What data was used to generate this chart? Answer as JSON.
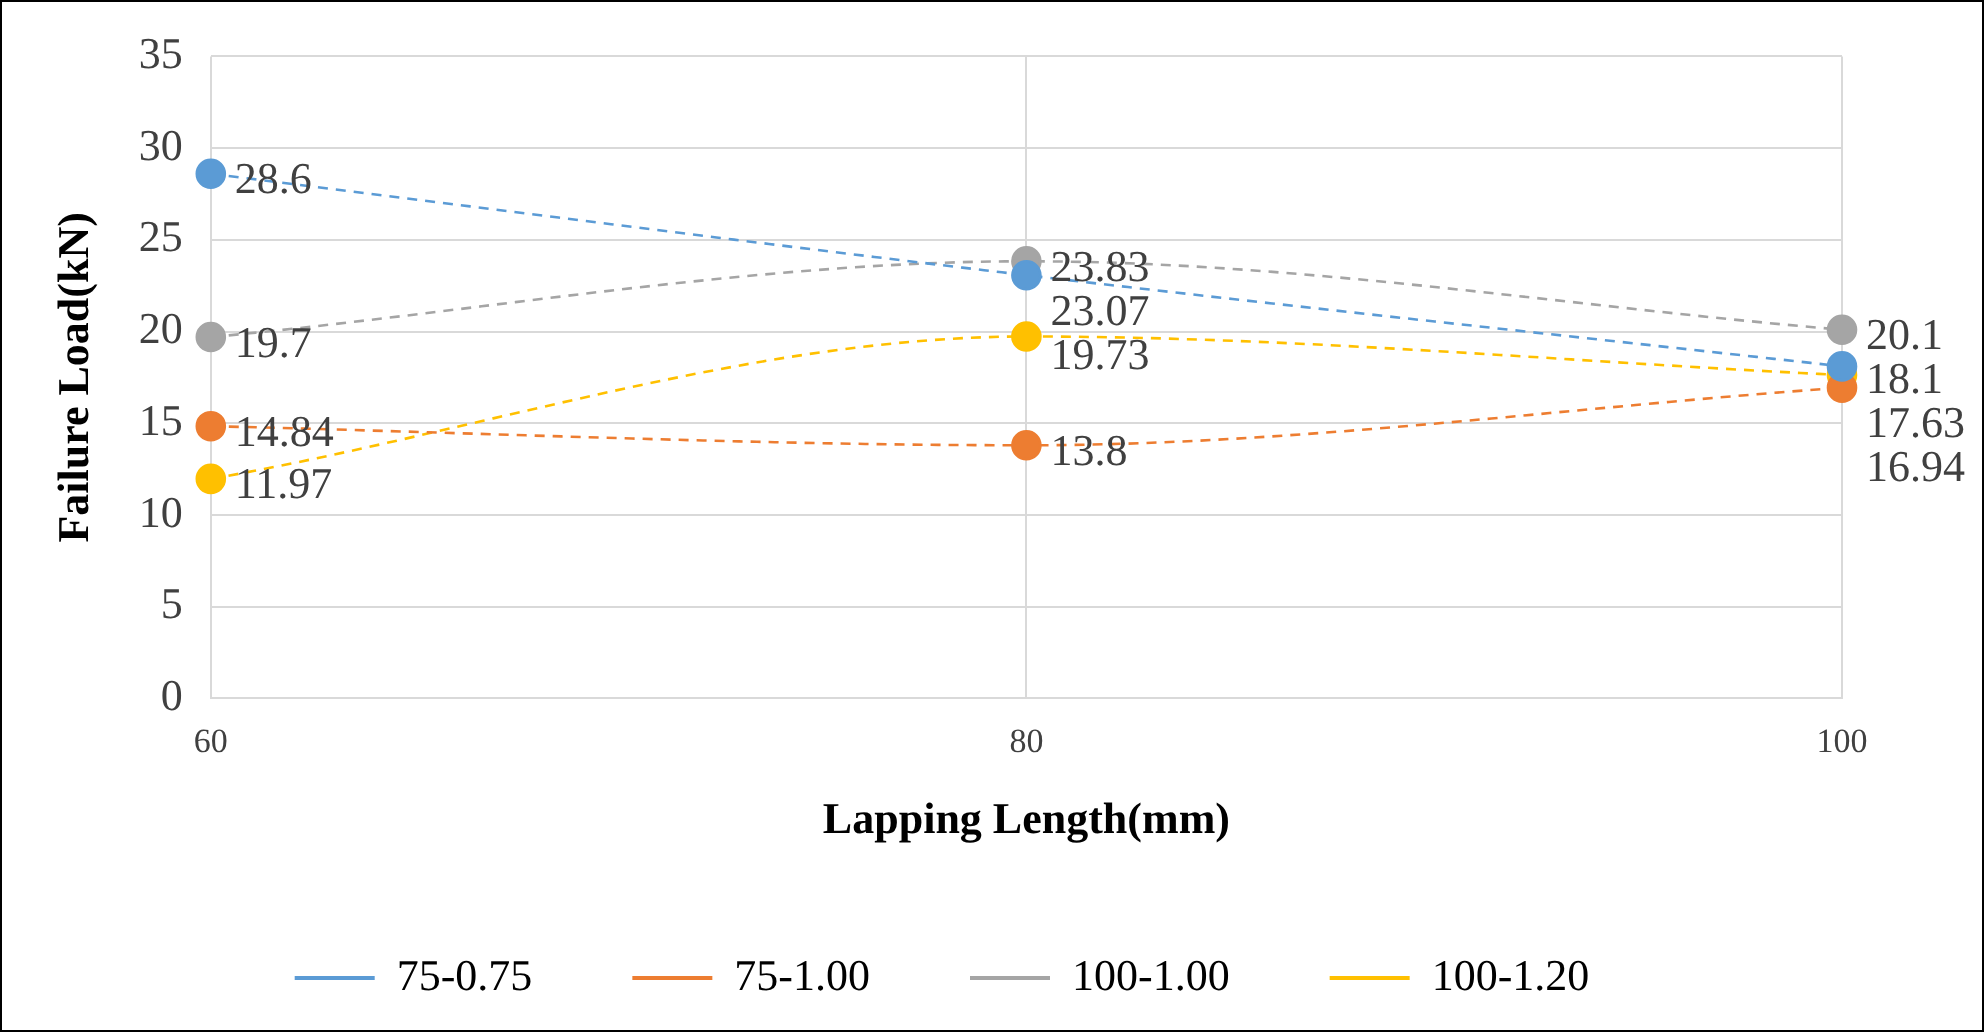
{
  "chart_data": {
    "type": "line",
    "xlabel": "Lapping Length(mm)",
    "ylabel": "Failure Load(kN)",
    "categories": [
      "60",
      "80",
      "100"
    ],
    "series": [
      {
        "name": "75-0.75",
        "color": "#5b9bd5",
        "values": [
          28.6,
          23.07,
          18.1
        ]
      },
      {
        "name": "75-1.00",
        "color": "#ed7d31",
        "values": [
          14.84,
          13.8,
          16.94
        ]
      },
      {
        "name": "100-1.00",
        "color": "#a5a5a5",
        "values": [
          19.7,
          23.83,
          20.1
        ]
      },
      {
        "name": "100-1.20",
        "color": "#ffc000",
        "values": [
          11.97,
          19.73,
          17.63
        ]
      }
    ],
    "ylim": [
      0,
      35
    ],
    "yticks": [
      0,
      5,
      10,
      15,
      20,
      25,
      30,
      35
    ],
    "grid": true,
    "legend": "bottom",
    "marker": "circle",
    "line_style": "dashed",
    "data_labels": true
  }
}
